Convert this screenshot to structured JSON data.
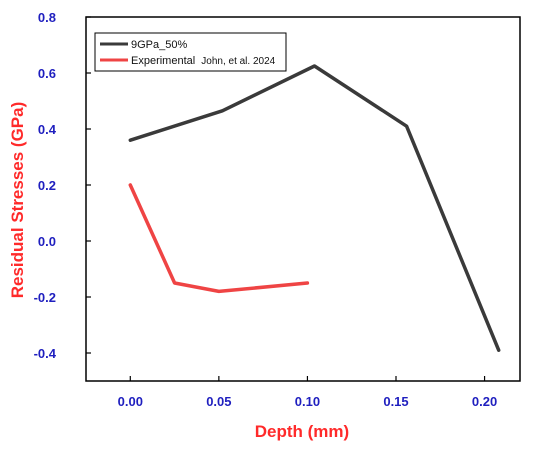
{
  "chart_data": {
    "type": "line",
    "xlabel": "Depth (mm)",
    "ylabel": "Residual Stresses (GPa)",
    "xlim": [
      -0.025,
      0.22
    ],
    "ylim": [
      -0.5,
      0.8
    ],
    "x_ticks": [
      "0.00",
      "0.05",
      "0.10",
      "0.15",
      "0.20"
    ],
    "y_ticks": [
      "-0.4",
      "-0.2",
      "0.0",
      "0.2",
      "0.4",
      "0.6",
      "0.8"
    ],
    "legend_position": "top-left",
    "grid": false,
    "series": [
      {
        "name": "9GPa_50%",
        "color": "#3a3a3a",
        "x": [
          0.0,
          0.052,
          0.104,
          0.156,
          0.208
        ],
        "y": [
          0.36,
          0.465,
          0.625,
          0.41,
          -0.39
        ]
      },
      {
        "name": "Experimental",
        "citation": "John, et al. 2024",
        "color": "#ef4444",
        "x": [
          0.0,
          0.025,
          0.05,
          0.1
        ],
        "y": [
          0.2,
          -0.15,
          -0.18,
          -0.15
        ]
      }
    ]
  },
  "colors": {
    "tick_label": "#1f1fbf",
    "axis_title": "#ff2a2a",
    "axis_line": "#000000"
  }
}
